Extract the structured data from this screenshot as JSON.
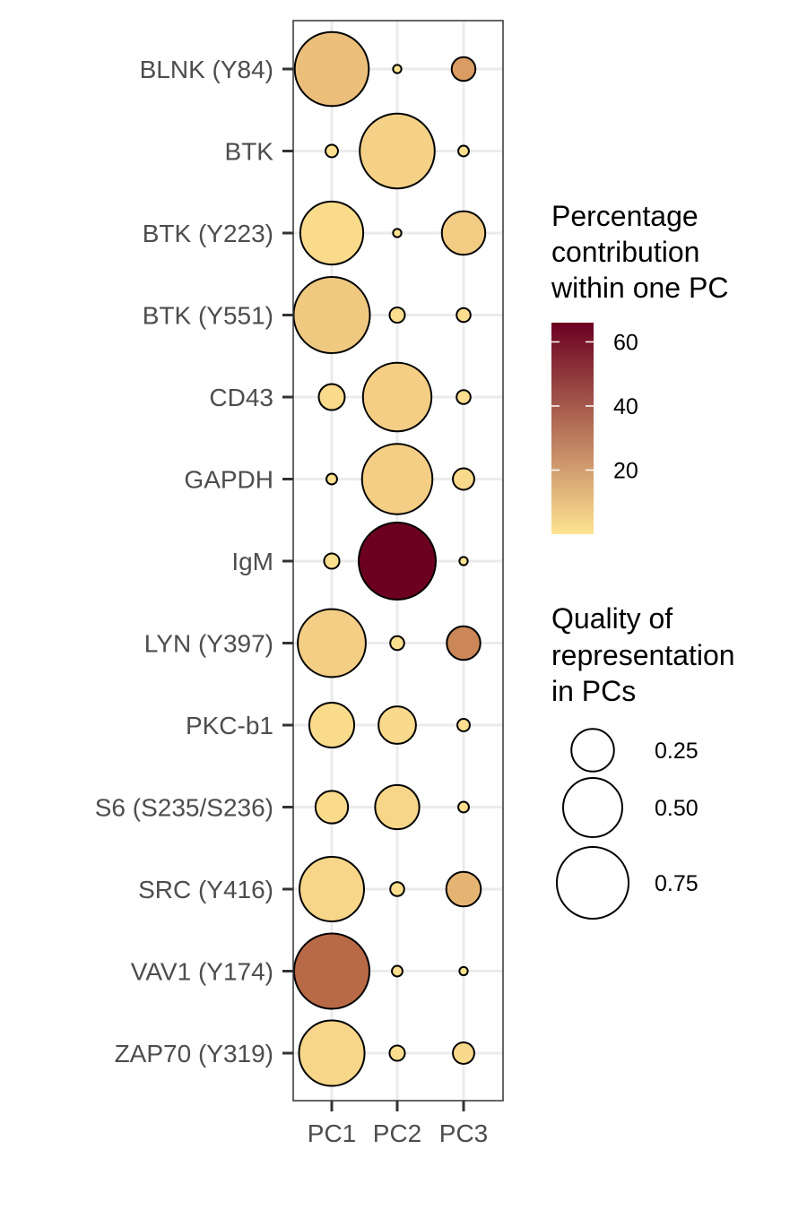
{
  "chart_data": {
    "type": "scatter",
    "title": "",
    "xlabel": "",
    "ylabel": "",
    "x_categories": [
      "PC1",
      "PC2",
      "PC3"
    ],
    "y_categories": [
      "BLNK (Y84)",
      "BTK",
      "BTK (Y223)",
      "BTK (Y551)",
      "CD43",
      "GAPDH",
      "IgM",
      "LYN (Y397)",
      "PKC-b1",
      "S6 (S235/S236)",
      "SRC (Y416)",
      "VAV1 (Y174)",
      "ZAP70 (Y319)"
    ],
    "points": [
      {
        "y": "BLNK (Y84)",
        "x": "PC1",
        "contribution": 14,
        "quality": 0.8
      },
      {
        "y": "BLNK (Y84)",
        "x": "PC2",
        "contribution": 0.1,
        "quality": 0.005
      },
      {
        "y": "BLNK (Y84)",
        "x": "PC3",
        "contribution": 26,
        "quality": 0.07
      },
      {
        "y": "BTK",
        "x": "PC1",
        "contribution": 1,
        "quality": 0.015
      },
      {
        "y": "BTK",
        "x": "PC2",
        "contribution": 7,
        "quality": 0.82
      },
      {
        "y": "BTK",
        "x": "PC3",
        "contribution": 1,
        "quality": 0.01
      },
      {
        "y": "BTK (Y223)",
        "x": "PC1",
        "contribution": 3,
        "quality": 0.57
      },
      {
        "y": "BTK (Y223)",
        "x": "PC2",
        "contribution": 0.1,
        "quality": 0.005
      },
      {
        "y": "BTK (Y223)",
        "x": "PC3",
        "contribution": 9,
        "quality": 0.26
      },
      {
        "y": "BTK (Y551)",
        "x": "PC1",
        "contribution": 10,
        "quality": 0.85
      },
      {
        "y": "BTK (Y551)",
        "x": "PC2",
        "contribution": 2,
        "quality": 0.025
      },
      {
        "y": "BTK (Y551)",
        "x": "PC3",
        "contribution": 2,
        "quality": 0.02
      },
      {
        "y": "CD43",
        "x": "PC1",
        "contribution": 3,
        "quality": 0.085
      },
      {
        "y": "CD43",
        "x": "PC2",
        "contribution": 8,
        "quality": 0.68
      },
      {
        "y": "CD43",
        "x": "PC3",
        "contribution": 2,
        "quality": 0.02
      },
      {
        "y": "GAPDH",
        "x": "PC1",
        "contribution": 1,
        "quality": 0.01
      },
      {
        "y": "GAPDH",
        "x": "PC2",
        "contribution": 8,
        "quality": 0.72
      },
      {
        "y": "GAPDH",
        "x": "PC3",
        "contribution": 4,
        "quality": 0.055
      },
      {
        "y": "IgM",
        "x": "PC1",
        "contribution": 2,
        "quality": 0.025
      },
      {
        "y": "IgM",
        "x": "PC2",
        "contribution": 66,
        "quality": 0.87
      },
      {
        "y": "IgM",
        "x": "PC3",
        "contribution": 0.1,
        "quality": 0.005
      },
      {
        "y": "LYN (Y397)",
        "x": "PC1",
        "contribution": 8,
        "quality": 0.67
      },
      {
        "y": "LYN (Y397)",
        "x": "PC2",
        "contribution": 2,
        "quality": 0.02
      },
      {
        "y": "LYN (Y397)",
        "x": "PC3",
        "contribution": 32,
        "quality": 0.15
      },
      {
        "y": "PKC-b1",
        "x": "PC1",
        "contribution": 3,
        "quality": 0.28
      },
      {
        "y": "PKC-b1",
        "x": "PC2",
        "contribution": 4,
        "quality": 0.19
      },
      {
        "y": "PKC-b1",
        "x": "PC3",
        "contribution": 1,
        "quality": 0.015
      },
      {
        "y": "S6 (S235/S236)",
        "x": "PC1",
        "contribution": 3,
        "quality": 0.14
      },
      {
        "y": "S6 (S235/S236)",
        "x": "PC2",
        "contribution": 5,
        "quality": 0.27
      },
      {
        "y": "S6 (S235/S236)",
        "x": "PC3",
        "contribution": 1,
        "quality": 0.01
      },
      {
        "y": "SRC (Y416)",
        "x": "PC1",
        "contribution": 5,
        "quality": 0.6
      },
      {
        "y": "SRC (Y416)",
        "x": "PC2",
        "contribution": 2,
        "quality": 0.02
      },
      {
        "y": "SRC (Y416)",
        "x": "PC3",
        "contribution": 18,
        "quality": 0.16
      },
      {
        "y": "VAV1 (Y174)",
        "x": "PC1",
        "contribution": 40,
        "quality": 0.83
      },
      {
        "y": "VAV1 (Y174)",
        "x": "PC2",
        "contribution": 2,
        "quality": 0.01
      },
      {
        "y": "VAV1 (Y174)",
        "x": "PC3",
        "contribution": 0.1,
        "quality": 0.005
      },
      {
        "y": "ZAP70 (Y319)",
        "x": "PC1",
        "contribution": 5,
        "quality": 0.62
      },
      {
        "y": "ZAP70 (Y319)",
        "x": "PC2",
        "contribution": 2,
        "quality": 0.025
      },
      {
        "y": "ZAP70 (Y319)",
        "x": "PC3",
        "contribution": 4,
        "quality": 0.055
      }
    ],
    "color_legend": {
      "title_lines": [
        "Percentage",
        "contribution",
        "within one PC"
      ],
      "ticks": [
        20,
        40,
        60
      ],
      "range": [
        0,
        66
      ],
      "colors": [
        "#fee391",
        "#ecc17c",
        "#d89c62",
        "#b96a47",
        "#953a31",
        "#6b0020"
      ]
    },
    "size_legend": {
      "title_lines": [
        "Quality of",
        "representation",
        "in PCs"
      ],
      "values": [
        0.25,
        0.5,
        0.75
      ],
      "labels": [
        "0.25",
        "0.50",
        "0.75"
      ]
    },
    "grid": true,
    "legend_placement": "right"
  }
}
